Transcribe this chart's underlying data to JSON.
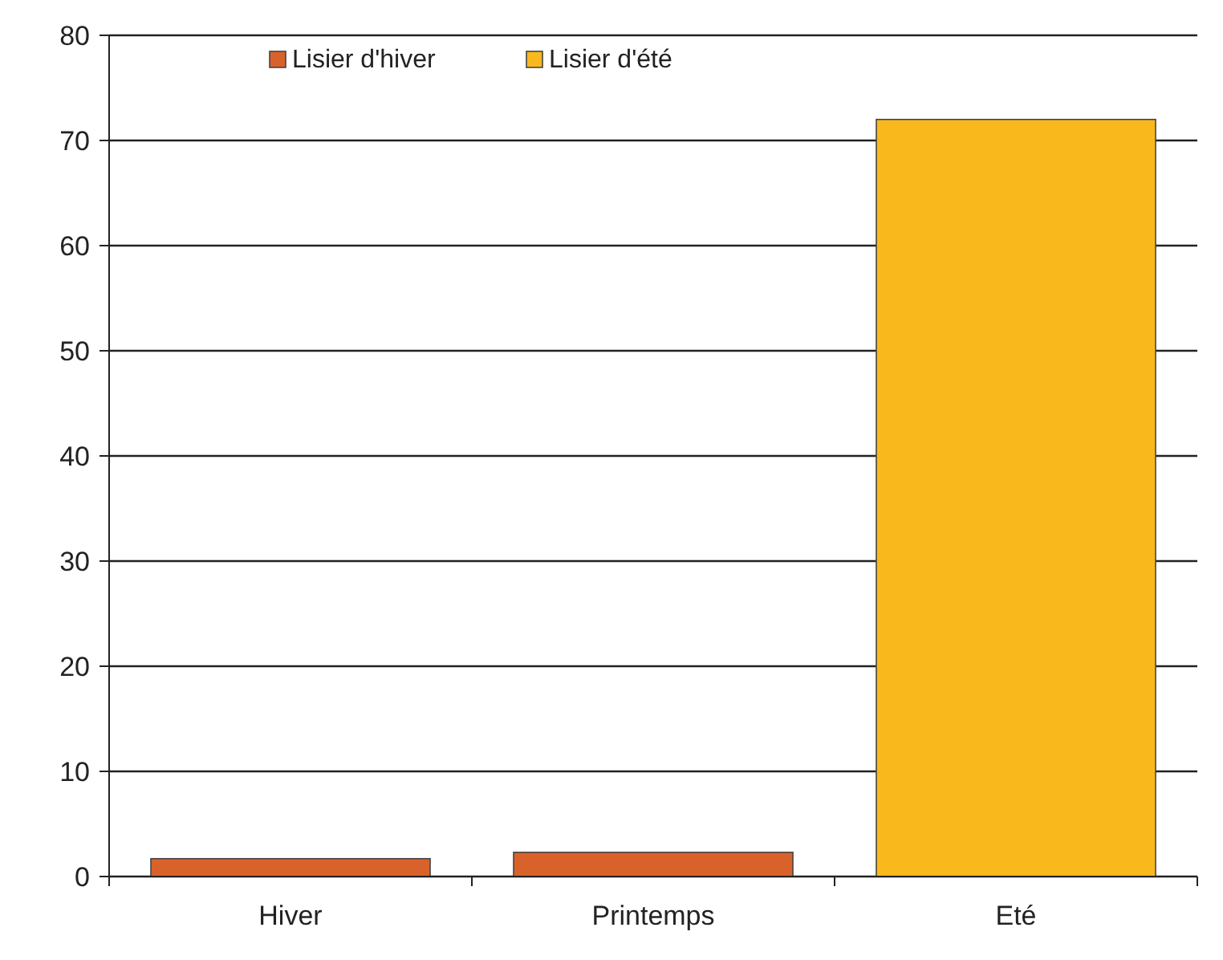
{
  "chart_data": {
    "type": "bar",
    "categories": [
      "Hiver",
      "Printemps",
      "Eté"
    ],
    "series": [
      {
        "name": "Lisier d'hiver",
        "color": "#d9622b",
        "values": [
          1.7,
          2.3,
          null
        ]
      },
      {
        "name": "Lisier d'été",
        "color": "#f9b91c",
        "values": [
          null,
          null,
          72
        ]
      }
    ],
    "ylim": [
      0,
      80
    ],
    "yticks": [
      0,
      10,
      20,
      30,
      40,
      50,
      60,
      70,
      80
    ],
    "grid": "y",
    "legend": "top left"
  }
}
